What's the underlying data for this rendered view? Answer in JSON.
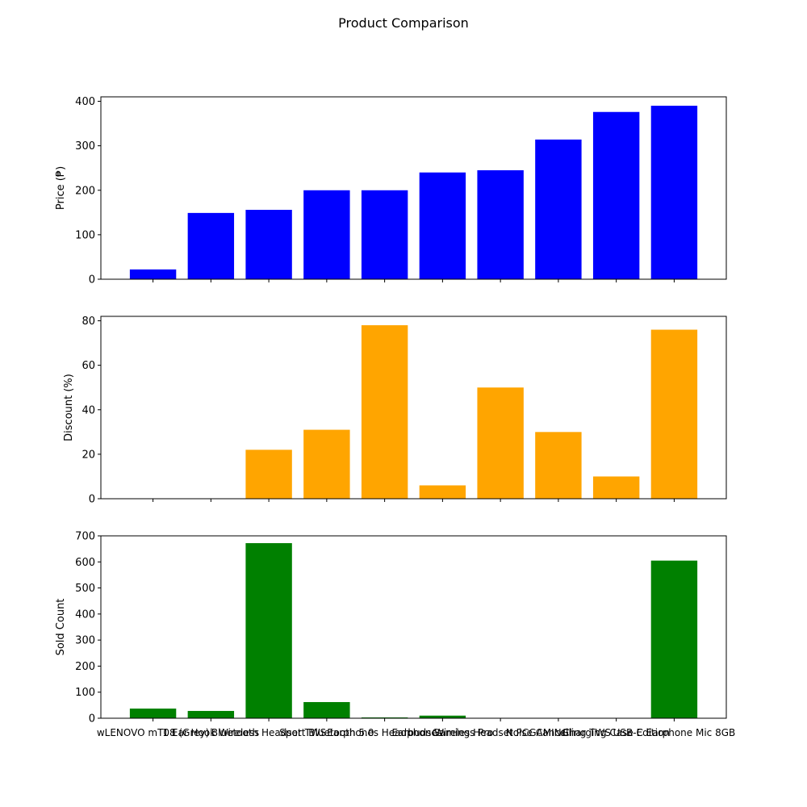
{
  "figure_title": "Product Comparison",
  "chart_data": [
    {
      "type": "bar",
      "title": "",
      "xlabel": "",
      "ylabel": "Price (₱)",
      "ylim": [
        0,
        410
      ],
      "yticks": [
        0,
        100,
        200,
        300,
        400
      ],
      "color": "#0000ff",
      "show_x_labels": false,
      "grid": false,
      "categories": [
        "",
        "",
        "",
        "",
        "",
        "",
        "",
        "",
        "",
        ""
      ],
      "values": [
        22,
        149,
        156,
        200,
        200,
        240,
        245,
        314,
        376,
        390
      ]
    },
    {
      "type": "bar",
      "title": "",
      "xlabel": "",
      "ylabel": "Discount (%)",
      "ylim": [
        0,
        82
      ],
      "yticks": [
        0,
        20,
        40,
        60,
        80
      ],
      "color": "#ffa500",
      "show_x_labels": false,
      "grid": false,
      "categories": [
        "",
        "",
        "",
        "",
        "",
        "",
        "",
        "",
        "",
        ""
      ],
      "values": [
        0,
        0,
        22,
        31,
        78,
        6,
        50,
        30,
        10,
        76
      ]
    },
    {
      "type": "bar",
      "title": "",
      "xlabel": "",
      "ylabel": "Sold Count",
      "ylim": [
        0,
        700
      ],
      "yticks": [
        0,
        100,
        200,
        300,
        400,
        500,
        600,
        700
      ],
      "color": "#008000",
      "show_x_labels": true,
      "grid": false,
      "categories": [
        "wLENOVO mT08 (Grey)",
        "1 Ear Hook Wireless",
        "Bluetooth Headset TWS",
        "Sport Bluetooth 5.0",
        "Earphones Headphones",
        "Earbuds Wireless Pro",
        "Gaming Headset PCGAMING",
        "Noise Cancelling TWS",
        "Charging Case Edition",
        "USB-C Earphone Mic 8GB"
      ],
      "values": [
        37,
        28,
        672,
        62,
        3,
        10,
        0,
        0,
        0,
        605
      ]
    }
  ]
}
